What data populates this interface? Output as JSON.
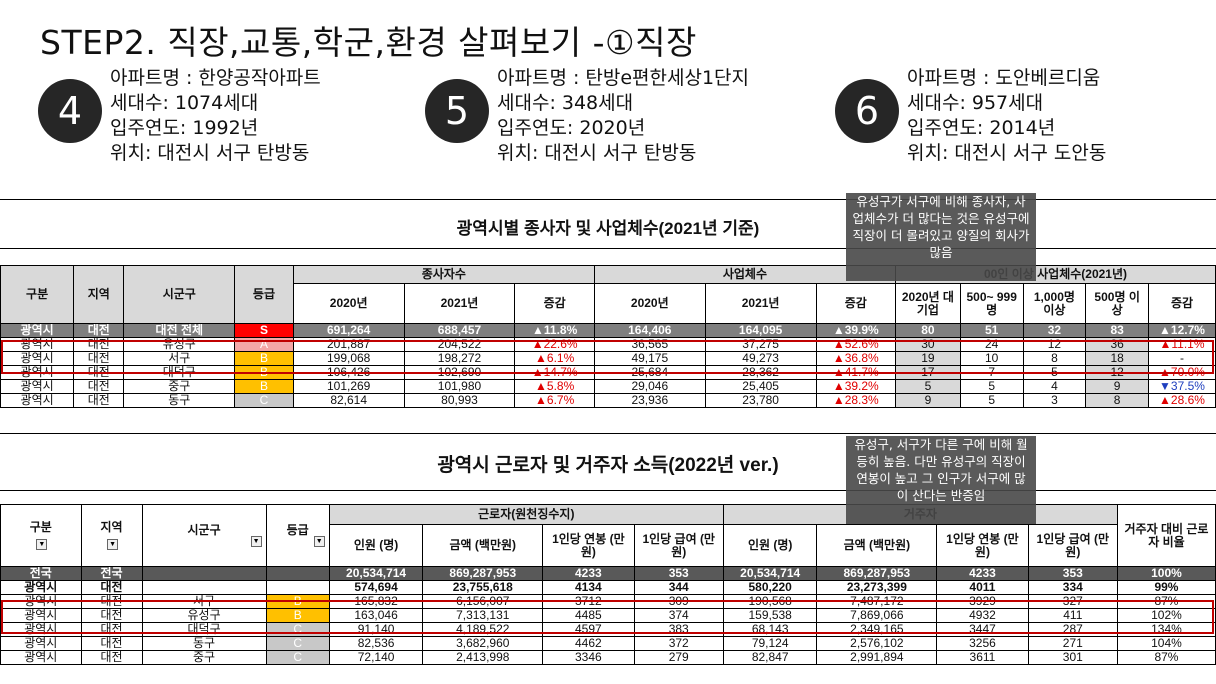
{
  "title": "STEP2. 직장,교통,학군,환경 살펴보기 -①직장",
  "apartments": [
    {
      "number": "4",
      "name": "아파트명 : 한양공작아파트",
      "households": "세대수: 1074세대",
      "year": "입주연도: 1992년",
      "location": "위치: 대전시 서구 탄방동"
    },
    {
      "number": "5",
      "name": "아파트명 : 탄방e편한세상1단지",
      "households": "세대수: 348세대",
      "year": "입주연도: 2020년",
      "location": "위치: 대전시 서구 탄방동"
    },
    {
      "number": "6",
      "name": "아파트명 : 도안베르디움",
      "households": "세대수: 957세대",
      "year": "입주연도: 2014년",
      "location": "위치: 대전시 서구 도안동"
    }
  ],
  "table1": {
    "title": "광역시별 종사자 및 사업체수(2021년 기준)",
    "header_groups": {
      "workers": "종사자수",
      "biz": "사업체수",
      "large": "00인 이상 사업체수(2021년)"
    },
    "headers": {
      "gubun": "구분",
      "region": "지역",
      "district": "시군구",
      "grade": "등급",
      "y2020": "2020년",
      "y2021": "2021년",
      "change": "증감",
      "bigcorp": "2020년 대기업",
      "r500": "500~ 999명",
      "r1000": "1,000명 이상",
      "r500up": "500명 이상",
      "change2": "증감"
    },
    "rows": [
      {
        "gubun": "광역시",
        "region": "대전",
        "district": "대전 전체",
        "grade": "S",
        "w2020": "691,264",
        "w2021": "688,457",
        "wchg": "▲11.8%",
        "b2020": "164,406",
        "b2021": "164,095",
        "bchg": "▲39.9%",
        "big": "80",
        "r500": "51",
        "r1000": "32",
        "r500up": "83",
        "chg": "▲12.7%"
      },
      {
        "gubun": "광역시",
        "region": "대전",
        "district": "유성구",
        "grade": "A",
        "w2020": "201,887",
        "w2021": "204,522",
        "wchg": "▲22.6%",
        "b2020": "36,565",
        "b2021": "37,275",
        "bchg": "▲52.6%",
        "big": "30",
        "r500": "24",
        "r1000": "12",
        "r500up": "36",
        "chg": "▲11.1%"
      },
      {
        "gubun": "광역시",
        "region": "대전",
        "district": "서구",
        "grade": "B",
        "w2020": "199,068",
        "w2021": "198,272",
        "wchg": "▲6.1%",
        "b2020": "49,175",
        "b2021": "49,273",
        "bchg": "▲36.8%",
        "big": "19",
        "r500": "10",
        "r1000": "8",
        "r500up": "18",
        "chg": "-"
      },
      {
        "gubun": "광역시",
        "region": "대전",
        "district": "대덕구",
        "grade": "B",
        "w2020": "106,426",
        "w2021": "102,690",
        "wchg": "▲14.7%",
        "b2020": "25,684",
        "b2021": "28,362",
        "bchg": "▲41.7%",
        "big": "17",
        "r500": "7",
        "r1000": "5",
        "r500up": "12",
        "chg": "▲70.0%"
      },
      {
        "gubun": "광역시",
        "region": "대전",
        "district": "중구",
        "grade": "B",
        "w2020": "101,269",
        "w2021": "101,980",
        "wchg": "▲5.8%",
        "b2020": "29,046",
        "b2021": "25,405",
        "bchg": "▲39.2%",
        "big": "5",
        "r500": "5",
        "r1000": "4",
        "r500up": "9",
        "chg": "▼37.5%"
      },
      {
        "gubun": "광역시",
        "region": "대전",
        "district": "동구",
        "grade": "C",
        "w2020": "82,614",
        "w2021": "80,993",
        "wchg": "▲6.7%",
        "b2020": "23,936",
        "b2021": "23,780",
        "bchg": "▲28.3%",
        "big": "9",
        "r500": "5",
        "r1000": "3",
        "r500up": "8",
        "chg": "▲28.6%"
      }
    ],
    "note": "유성구가 서구에 비해 종사자, 사업체수가 더 많다는 것은 유성구에 직장이 더 몰려있고 양질의 회사가 많음"
  },
  "table2": {
    "title": "광역시 근로자 및 거주자 소득(2022년 ver.)",
    "header_groups": {
      "workers": "근로자(원천징수지)",
      "residents": "거주자"
    },
    "headers": {
      "gubun": "구분",
      "region": "지역",
      "district": "시군구",
      "grade": "등급",
      "people": "인원 (명)",
      "amount": "금액 (백만원)",
      "salary": "1인당 연봉 (만원)",
      "pay": "1인당 급여 (만원)",
      "ratio": "거주자 대비 근로자 비율"
    },
    "rows": [
      {
        "gubun": "전국",
        "region": "전국",
        "district": "",
        "grade": "",
        "wp": "20,534,714",
        "wa": "869,287,953",
        "ws": "4233",
        "wpay": "353",
        "rp": "20,534,714",
        "ra": "869,287,953",
        "rs": "4233",
        "rpay": "353",
        "ratio": "100%"
      },
      {
        "gubun": "광역시",
        "region": "대전",
        "district": "",
        "grade": "",
        "wp": "574,694",
        "wa": "23,755,618",
        "ws": "4134",
        "wpay": "344",
        "rp": "580,220",
        "ra": "23,273,399",
        "rs": "4011",
        "rpay": "334",
        "ratio": "99%"
      },
      {
        "gubun": "광역시",
        "region": "대전",
        "district": "서구",
        "grade": "B",
        "wp": "165,832",
        "wa": "6,156,007",
        "ws": "3712",
        "wpay": "309",
        "rp": "190,568",
        "ra": "7,487,172",
        "rs": "3929",
        "rpay": "327",
        "ratio": "87%"
      },
      {
        "gubun": "광역시",
        "region": "대전",
        "district": "유성구",
        "grade": "B",
        "wp": "163,046",
        "wa": "7,313,131",
        "ws": "4485",
        "wpay": "374",
        "rp": "159,538",
        "ra": "7,869,066",
        "rs": "4932",
        "rpay": "411",
        "ratio": "102%"
      },
      {
        "gubun": "광역시",
        "region": "대전",
        "district": "대덕구",
        "grade": "C",
        "wp": "91,140",
        "wa": "4,189,522",
        "ws": "4597",
        "wpay": "383",
        "rp": "68,143",
        "ra": "2,349,165",
        "rs": "3447",
        "rpay": "287",
        "ratio": "134%"
      },
      {
        "gubun": "광역시",
        "region": "대전",
        "district": "동구",
        "grade": "C",
        "wp": "82,536",
        "wa": "3,682,960",
        "ws": "4462",
        "wpay": "372",
        "rp": "79,124",
        "ra": "2,576,102",
        "rs": "3256",
        "rpay": "271",
        "ratio": "104%"
      },
      {
        "gubun": "광역시",
        "region": "대전",
        "district": "중구",
        "grade": "C",
        "wp": "72,140",
        "wa": "2,413,998",
        "ws": "3346",
        "wpay": "279",
        "rp": "82,847",
        "ra": "2,991,894",
        "rs": "3611",
        "rpay": "301",
        "ratio": "87%"
      }
    ],
    "note": "유성구, 서구가 다른 구에 비해 월등히 높음. 다만 유성구의 직장이 연봉이 높고 그 인구가 서구에 많이 산다는 반증임"
  },
  "colors": {
    "accent_red": "#c00000",
    "grade_s": "#ff0000",
    "grade_a": "#f4a7a7",
    "grade_b": "#ffc000",
    "grade_c": "#c8c8c8",
    "total_row": "#7f7f7f"
  }
}
